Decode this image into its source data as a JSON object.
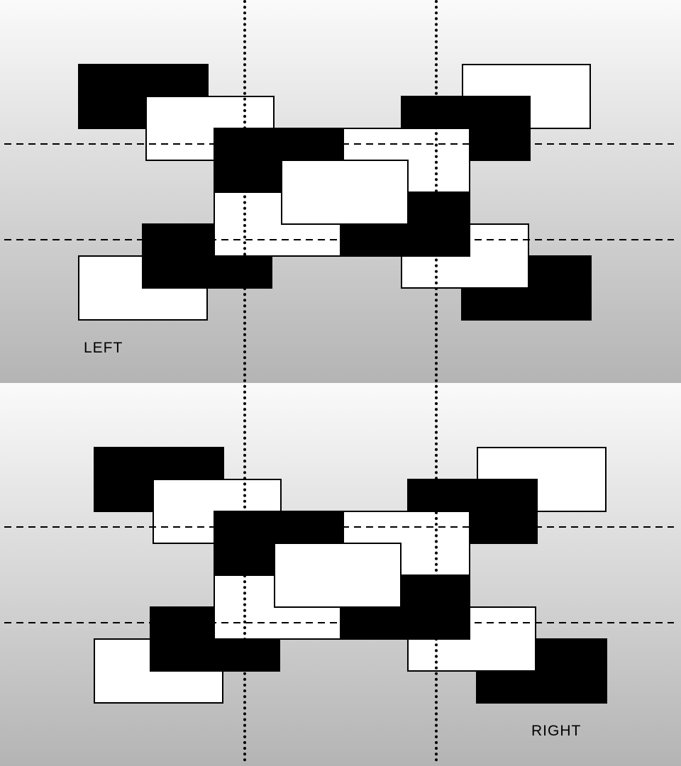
{
  "panels": [
    {
      "id": "top",
      "label": "LEFT"
    },
    {
      "id": "bottom",
      "label": "RIGHT"
    }
  ],
  "colors": {
    "black_fill": "#000000",
    "white_fill": "#ffffff",
    "outline": "#000000",
    "guide_line": "#000000",
    "background_top": "#fafafa",
    "background_bottom": "#b4b4b4"
  },
  "guide_lines": {
    "horizontal_style": "dashed",
    "vertical_style": "dotted"
  }
}
